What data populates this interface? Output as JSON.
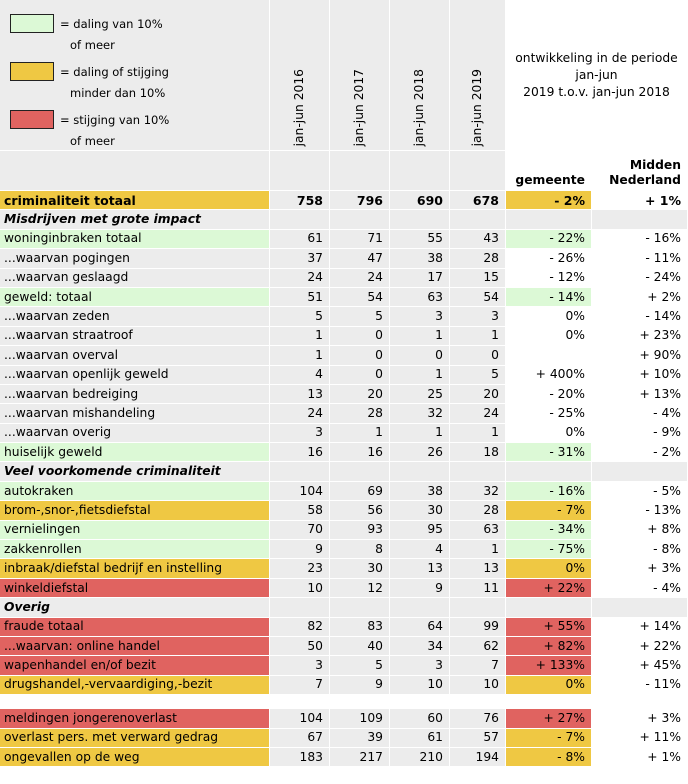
{
  "legend": [
    {
      "color": "#dcf9d6",
      "line1": "= daling van 10%",
      "line2": "of meer"
    },
    {
      "color": "#efc843",
      "line1": "= daling of stijging",
      "line2": "minder dan 10%"
    },
    {
      "color": "#e06360",
      "line1": "= stijging van 10%",
      "line2": "of meer"
    }
  ],
  "columns": [
    "jan-jun 2016",
    "jan-jun 2017",
    "jan-jun 2018",
    "jan-jun 2019"
  ],
  "development_title": [
    "ontwikkeling in de periode",
    "jan-jun",
    "2019 t.o.v. jan-jun 2018"
  ],
  "subheaders": {
    "gemeente": "gemeente",
    "midden_line1": "Midden",
    "midden_line2": "Nederland"
  },
  "colors": {
    "green": "#dcf9d6",
    "yellow": "#efc843",
    "red": "#e06360",
    "grey": "#ececec"
  },
  "rows": [
    {
      "type": "total",
      "label": "criminaliteit totaal",
      "values": [
        "758",
        "796",
        "690",
        "678"
      ],
      "gemeente": "- 2%",
      "midden": "+ 1%",
      "color": "y"
    },
    {
      "type": "section",
      "label": "Misdrijven met grote impact"
    },
    {
      "type": "row",
      "label": "woninginbraken totaal",
      "values": [
        "61",
        "71",
        "55",
        "43"
      ],
      "gemeente": "- 22%",
      "midden": "- 16%",
      "color": "g"
    },
    {
      "type": "row",
      "label": "...waarvan pogingen",
      "values": [
        "37",
        "47",
        "38",
        "28"
      ],
      "gemeente": "- 26%",
      "midden": "- 11%",
      "color": "n"
    },
    {
      "type": "row",
      "label": "...waarvan geslaagd",
      "values": [
        "24",
        "24",
        "17",
        "15"
      ],
      "gemeente": "- 12%",
      "midden": "- 24%",
      "color": "n"
    },
    {
      "type": "row",
      "label": "geweld: totaal",
      "values": [
        "51",
        "54",
        "63",
        "54"
      ],
      "gemeente": "- 14%",
      "midden": "+ 2%",
      "color": "g"
    },
    {
      "type": "row",
      "label": "...waarvan zeden",
      "values": [
        "5",
        "5",
        "3",
        "3"
      ],
      "gemeente": "0%",
      "midden": "- 14%",
      "color": "n"
    },
    {
      "type": "row",
      "label": "...waarvan straatroof",
      "values": [
        "1",
        "0",
        "1",
        "1"
      ],
      "gemeente": "0%",
      "midden": "+ 23%",
      "color": "n"
    },
    {
      "type": "row",
      "label": "...waarvan overval",
      "values": [
        "1",
        "0",
        "0",
        "0"
      ],
      "gemeente": "",
      "midden": "+ 90%",
      "color": "n"
    },
    {
      "type": "row",
      "label": "...waarvan openlijk geweld",
      "values": [
        "4",
        "0",
        "1",
        "5"
      ],
      "gemeente": "+ 400%",
      "midden": "+ 10%",
      "color": "n"
    },
    {
      "type": "row",
      "label": "...waarvan bedreiging",
      "values": [
        "13",
        "20",
        "25",
        "20"
      ],
      "gemeente": "- 20%",
      "midden": "+ 13%",
      "color": "n"
    },
    {
      "type": "row",
      "label": "...waarvan mishandeling",
      "values": [
        "24",
        "28",
        "32",
        "24"
      ],
      "gemeente": "- 25%",
      "midden": "- 4%",
      "color": "n"
    },
    {
      "type": "row",
      "label": "...waarvan overig",
      "values": [
        "3",
        "1",
        "1",
        "1"
      ],
      "gemeente": "0%",
      "midden": "- 9%",
      "color": "n"
    },
    {
      "type": "row",
      "label": "huiselijk geweld",
      "values": [
        "16",
        "16",
        "26",
        "18"
      ],
      "gemeente": "- 31%",
      "midden": "- 2%",
      "color": "g"
    },
    {
      "type": "section",
      "label": "Veel voorkomende criminaliteit"
    },
    {
      "type": "row",
      "label": "autokraken",
      "values": [
        "104",
        "69",
        "38",
        "32"
      ],
      "gemeente": "- 16%",
      "midden": "- 5%",
      "color": "g"
    },
    {
      "type": "row",
      "label": "brom-,snor-,fietsdiefstal",
      "values": [
        "58",
        "56",
        "30",
        "28"
      ],
      "gemeente": "- 7%",
      "midden": "- 13%",
      "color": "y"
    },
    {
      "type": "row",
      "label": "vernielingen",
      "values": [
        "70",
        "93",
        "95",
        "63"
      ],
      "gemeente": "- 34%",
      "midden": "+ 8%",
      "color": "g"
    },
    {
      "type": "row",
      "label": "zakkenrollen",
      "values": [
        "9",
        "8",
        "4",
        "1"
      ],
      "gemeente": "- 75%",
      "midden": "- 8%",
      "color": "g"
    },
    {
      "type": "row",
      "label": "inbraak/diefstal bedrijf en instelling",
      "values": [
        "23",
        "30",
        "13",
        "13"
      ],
      "gemeente": "0%",
      "midden": "+ 3%",
      "color": "y"
    },
    {
      "type": "row",
      "label": "winkeldiefstal",
      "values": [
        "10",
        "12",
        "9",
        "11"
      ],
      "gemeente": "+ 22%",
      "midden": "- 4%",
      "color": "r"
    },
    {
      "type": "section",
      "label": "Overig"
    },
    {
      "type": "row",
      "label": "fraude totaal",
      "values": [
        "82",
        "83",
        "64",
        "99"
      ],
      "gemeente": "+ 55%",
      "midden": "+ 14%",
      "color": "r"
    },
    {
      "type": "row",
      "label": "...waarvan: online handel",
      "values": [
        "50",
        "40",
        "34",
        "62"
      ],
      "gemeente": "+ 82%",
      "midden": "+ 22%",
      "color": "r"
    },
    {
      "type": "row",
      "label": "wapenhandel en/of bezit",
      "values": [
        "3",
        "5",
        "3",
        "7"
      ],
      "gemeente": "+ 133%",
      "midden": "+ 45%",
      "color": "r"
    },
    {
      "type": "row",
      "label": "drugshandel,-vervaardiging,-bezit",
      "values": [
        "7",
        "9",
        "10",
        "10"
      ],
      "gemeente": "0%",
      "midden": "- 11%",
      "color": "y"
    },
    {
      "type": "blank"
    },
    {
      "type": "row",
      "label": "meldingen jongerenoverlast",
      "values": [
        "104",
        "109",
        "60",
        "76"
      ],
      "gemeente": "+ 27%",
      "midden": "+ 3%",
      "color": "r"
    },
    {
      "type": "row",
      "label": "overlast pers. met verward gedrag",
      "values": [
        "67",
        "39",
        "61",
        "57"
      ],
      "gemeente": "- 7%",
      "midden": "+ 11%",
      "color": "y"
    },
    {
      "type": "row",
      "label": "ongevallen op de weg",
      "values": [
        "183",
        "217",
        "210",
        "194"
      ],
      "gemeente": "- 8%",
      "midden": "+ 1%",
      "color": "y"
    }
  ]
}
